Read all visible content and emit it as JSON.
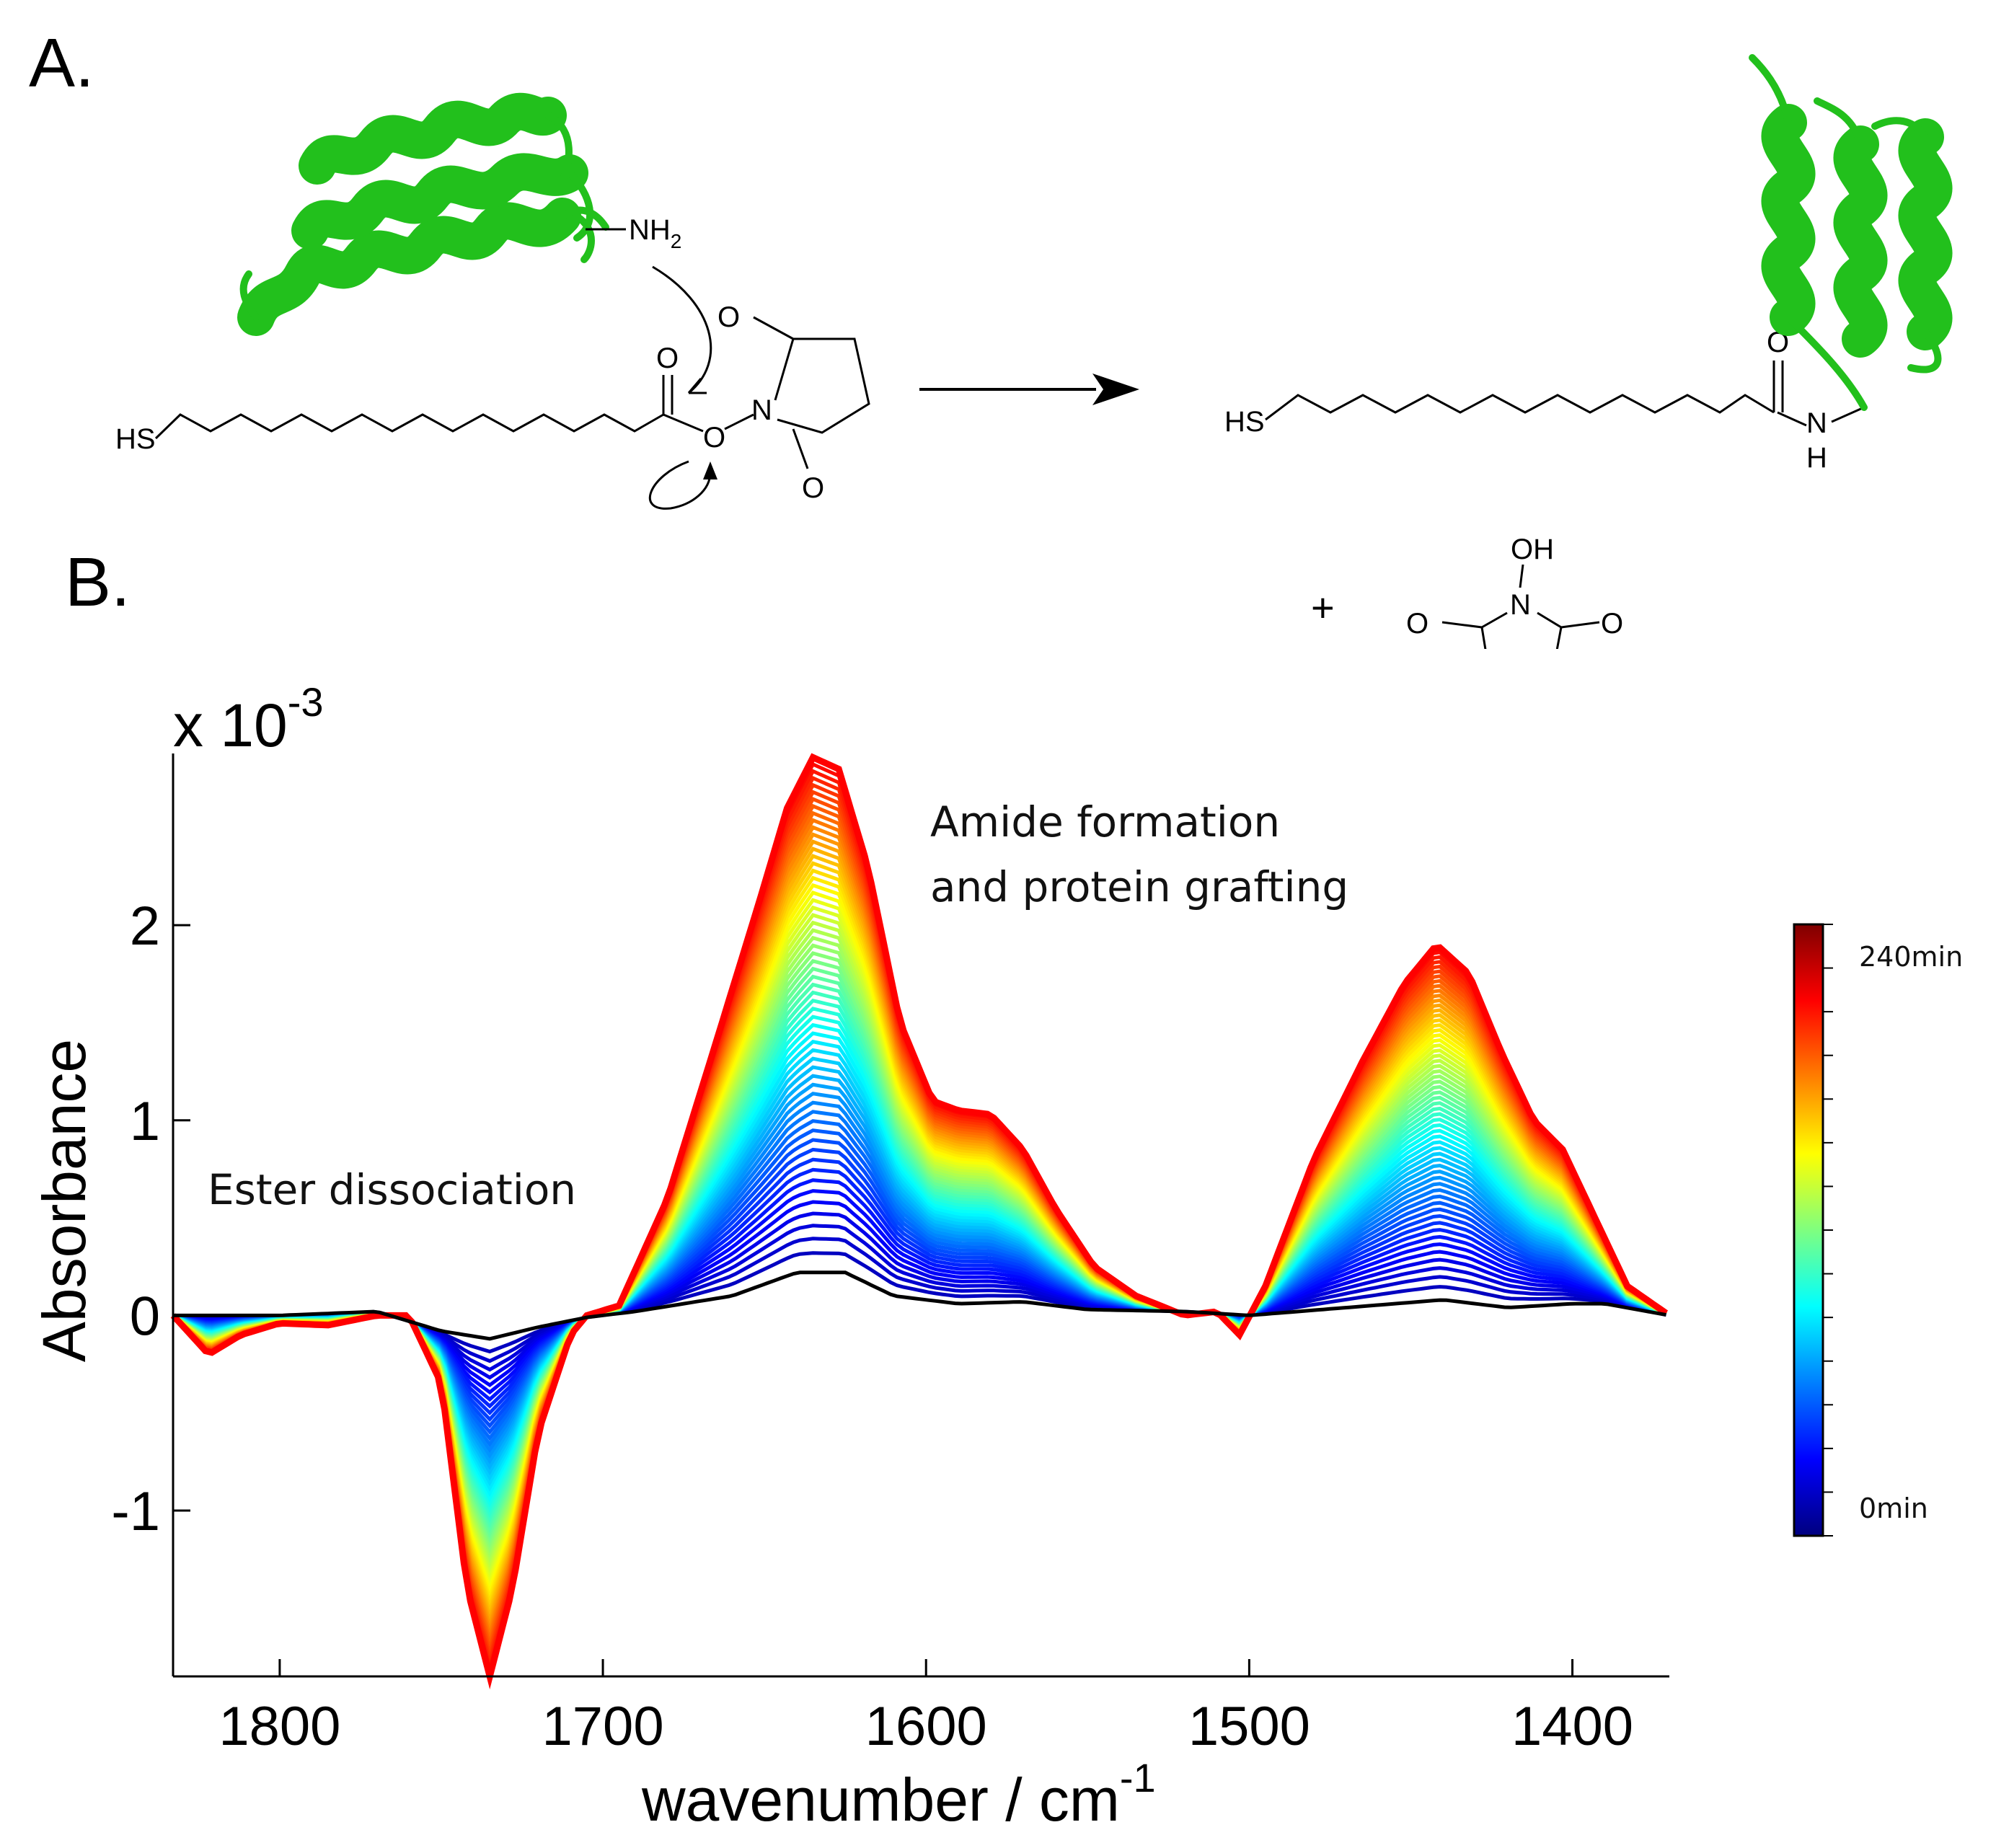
{
  "figure": {
    "panel_a_label": "A.",
    "panel_b_label": "B."
  },
  "scheme": {
    "amine_group": "NH",
    "amine_subscript": "2",
    "thiol_left": "HS",
    "thiol_right": "HS",
    "carbonyl_o": "O",
    "ester_o": "O",
    "nhs_n": "N",
    "nhs_o_top": "O",
    "nhs_o_bottom": "O",
    "amide_o": "O",
    "amide_n": "N",
    "amide_h": "H",
    "plus_sign": "+",
    "byproduct_oh": "OH",
    "byproduct_n": "N",
    "byproduct_o_left": "O",
    "byproduct_o_right": "O",
    "protein_color": "#22c01c"
  },
  "chart_data": {
    "type": "line",
    "title": "",
    "xlabel": "wavenumber / cm",
    "xlabel_superscript": "-1",
    "ylabel": "Absorbance",
    "y_multiplier_label": "x 10",
    "y_multiplier_exponent": "-3",
    "xlim": [
      1833,
      1370
    ],
    "ylim": [
      -1.85,
      2.88
    ],
    "x_ticks": [
      1800,
      1700,
      1600,
      1500,
      1400
    ],
    "x_tick_labels": [
      "1800",
      "1700",
      "1600",
      "1500",
      "1400"
    ],
    "y_ticks": [
      2,
      1,
      0,
      -1
    ],
    "y_tick_labels": [
      "2",
      "1",
      "0",
      "-1"
    ],
    "annotations": {
      "ester": "Ester dissociation",
      "amide_line1": "Amide formation",
      "amide_line2": "and protein grafting"
    },
    "colorbar": {
      "max_label": "240min",
      "min_label": "0min",
      "range_minutes": [
        0,
        240
      ],
      "colormap": [
        "#00007f",
        "#0000ff",
        "#007fff",
        "#00ffff",
        "#7fff7f",
        "#ffff00",
        "#ff7f00",
        "#ff0000",
        "#7f0000"
      ]
    },
    "baseline_series": {
      "name": "0 min",
      "color": "#000000",
      "points": [
        [
          1833,
          0.0
        ],
        [
          1800,
          0.0
        ],
        [
          1770,
          0.02
        ],
        [
          1750,
          -0.08
        ],
        [
          1735,
          -0.12
        ],
        [
          1720,
          -0.06
        ],
        [
          1705,
          -0.01
        ],
        [
          1690,
          0.02
        ],
        [
          1660,
          0.1
        ],
        [
          1640,
          0.22
        ],
        [
          1625,
          0.22
        ],
        [
          1610,
          0.1
        ],
        [
          1590,
          0.06
        ],
        [
          1570,
          0.07
        ],
        [
          1550,
          0.03
        ],
        [
          1520,
          0.02
        ],
        [
          1500,
          0.0
        ],
        [
          1470,
          0.04
        ],
        [
          1440,
          0.08
        ],
        [
          1420,
          0.04
        ],
        [
          1400,
          0.06
        ],
        [
          1390,
          0.06
        ],
        [
          1370,
          0.0
        ]
      ]
    },
    "final_series": {
      "name": "240 min",
      "color": "#ff0000",
      "points": [
        [
          1833,
          0.0
        ],
        [
          1822,
          -0.2
        ],
        [
          1812,
          -0.1
        ],
        [
          1800,
          -0.04
        ],
        [
          1785,
          -0.05
        ],
        [
          1770,
          0.0
        ],
        [
          1760,
          0.0
        ],
        [
          1750,
          -0.35
        ],
        [
          1742,
          -1.4
        ],
        [
          1735,
          -1.85
        ],
        [
          1728,
          -1.4
        ],
        [
          1720,
          -0.6
        ],
        [
          1710,
          -0.1
        ],
        [
          1705,
          0.0
        ],
        [
          1695,
          0.05
        ],
        [
          1680,
          0.6
        ],
        [
          1665,
          1.4
        ],
        [
          1652,
          2.1
        ],
        [
          1643,
          2.6
        ],
        [
          1635,
          2.86
        ],
        [
          1627,
          2.8
        ],
        [
          1618,
          2.3
        ],
        [
          1608,
          1.5
        ],
        [
          1598,
          1.1
        ],
        [
          1590,
          1.05
        ],
        [
          1580,
          1.03
        ],
        [
          1570,
          0.85
        ],
        [
          1560,
          0.55
        ],
        [
          1548,
          0.25
        ],
        [
          1535,
          0.1
        ],
        [
          1520,
          0.0
        ],
        [
          1510,
          0.02
        ],
        [
          1503,
          -0.1
        ],
        [
          1495,
          0.15
        ],
        [
          1480,
          0.8
        ],
        [
          1465,
          1.3
        ],
        [
          1452,
          1.7
        ],
        [
          1442,
          1.9
        ],
        [
          1432,
          1.75
        ],
        [
          1422,
          1.35
        ],
        [
          1412,
          1.0
        ],
        [
          1403,
          0.85
        ],
        [
          1393,
          0.5
        ],
        [
          1383,
          0.15
        ],
        [
          1370,
          0.0
        ]
      ]
    },
    "time_series_count": 60
  }
}
